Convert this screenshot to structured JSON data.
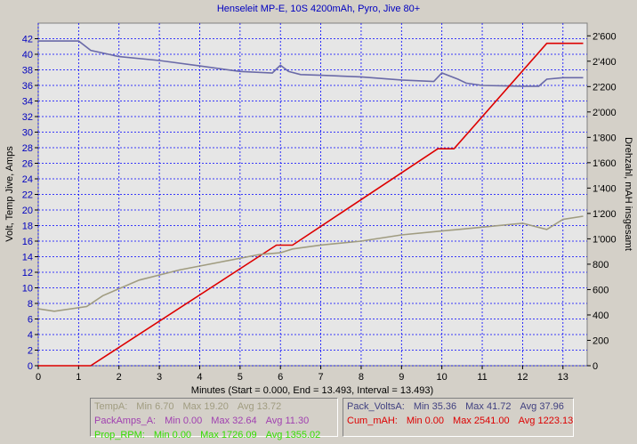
{
  "chart_data": {
    "type": "line",
    "title": "Henseleit MP-E, 10S 4200mAh, Pyro, Jive 80+",
    "xlabel": "Minutes (Start = 0.000,  End = 13.493,  Interval = 13.493)",
    "ylabel_left": "Volt, Temp Jive, Amps",
    "ylabel_right": "Drehzahl, mAH insgesamt",
    "x_range": [
      0,
      13.6
    ],
    "x_ticks": [
      "0",
      "1",
      "2",
      "3",
      "4",
      "5",
      "6",
      "7",
      "8",
      "9",
      "10",
      "11",
      "12",
      "13"
    ],
    "y_left_range": [
      0,
      44
    ],
    "y_left_ticks": [
      "0",
      "2",
      "4",
      "6",
      "8",
      "10",
      "12",
      "14",
      "16",
      "18",
      "20",
      "22",
      "24",
      "26",
      "28",
      "30",
      "32",
      "34",
      "36",
      "38",
      "40",
      "42"
    ],
    "y_right_range": [
      0,
      2700
    ],
    "y_right_ticks": [
      "0",
      "200",
      "400",
      "600",
      "800",
      "1'000",
      "1'200",
      "1'400",
      "1'600",
      "1'800",
      "2'000",
      "2'200",
      "2'400",
      "2'600"
    ],
    "grid": true,
    "series": [
      {
        "name": "Pack_VoltsA",
        "axis": "left",
        "color": "#6a6aa8",
        "x": [
          0,
          1.0,
          1.3,
          2.0,
          3.0,
          4.0,
          5.0,
          5.8,
          6.0,
          6.2,
          6.5,
          7.0,
          8.0,
          9.0,
          9.8,
          10.0,
          10.4,
          10.6,
          11.0,
          12.0,
          12.4,
          12.6,
          13.0,
          13.5
        ],
        "values": [
          41.7,
          41.7,
          40.5,
          39.7,
          39.2,
          38.5,
          37.8,
          37.6,
          38.6,
          37.8,
          37.4,
          37.3,
          37.1,
          36.7,
          36.5,
          37.6,
          36.8,
          36.3,
          36.0,
          35.9,
          35.9,
          36.8,
          37.0,
          37.0
        ]
      },
      {
        "name": "Cum_mAH",
        "axis": "right",
        "color": "#dd0000",
        "x": [
          0,
          1.3,
          5.9,
          6.3,
          9.9,
          10.3,
          12.6,
          13.5
        ],
        "values": [
          0,
          0,
          950,
          950,
          1710,
          1710,
          2541,
          2541
        ]
      },
      {
        "name": "TempA",
        "axis": "left",
        "color": "#a09c80",
        "x": [
          0,
          0.4,
          1.2,
          1.6,
          2.5,
          3.5,
          4.5,
          5.5,
          6.0,
          6.3,
          7.0,
          8.0,
          9.0,
          10.0,
          10.4,
          11.0,
          12.0,
          12.6,
          13.0,
          13.5
        ],
        "values": [
          7.3,
          7.0,
          7.6,
          9.0,
          11.0,
          12.3,
          13.3,
          14.3,
          14.5,
          15.0,
          15.5,
          16.0,
          16.8,
          17.3,
          17.5,
          17.8,
          18.3,
          17.5,
          18.8,
          19.2
        ]
      }
    ],
    "legend": [
      [
        {
          "label": "TempA:",
          "color": "#a09c80",
          "min": "6.70",
          "max": "19.20",
          "avg": "13.72"
        },
        {
          "label": "PackAmps_A:",
          "color": "#a040b0",
          "min": "0.00",
          "max": "32.64",
          "avg": "11.30"
        },
        {
          "label": "Prop_RPM:",
          "color": "#33dd00",
          "min": "0.00",
          "max": "1726.09",
          "avg": "1355.02"
        }
      ],
      [
        {
          "label": "Pack_VoltsA:",
          "color": "#404080",
          "min": "35.36",
          "max": "41.72",
          "avg": "37.96"
        },
        {
          "label": "Cum_mAH:",
          "color": "#dd0000",
          "min": "0.00",
          "max": "2541.00",
          "avg": "1223.13"
        }
      ]
    ],
    "legend_words": {
      "min": "Min",
      "max": "Max",
      "avg": "Avg"
    }
  }
}
